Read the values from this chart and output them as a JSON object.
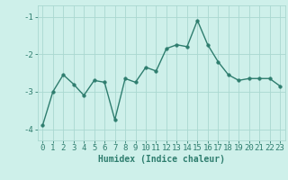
{
  "x": [
    0,
    1,
    2,
    3,
    4,
    5,
    6,
    7,
    8,
    9,
    10,
    11,
    12,
    13,
    14,
    15,
    16,
    17,
    18,
    19,
    20,
    21,
    22,
    23
  ],
  "y": [
    -3.9,
    -3.0,
    -2.55,
    -2.8,
    -3.1,
    -2.7,
    -2.75,
    -3.75,
    -2.65,
    -2.75,
    -2.35,
    -2.45,
    -1.85,
    -1.75,
    -1.8,
    -1.1,
    -1.75,
    -2.2,
    -2.55,
    -2.7,
    -2.65,
    -2.65,
    -2.65,
    -2.85
  ],
  "line_color": "#2e7d6e",
  "marker": "o",
  "markersize": 2.5,
  "linewidth": 1.0,
  "bg_color": "#cef0ea",
  "grid_color": "#aad8d0",
  "xlabel": "Humidex (Indice chaleur)",
  "xlim": [
    -0.5,
    23.5
  ],
  "ylim": [
    -4.3,
    -0.7
  ],
  "yticks": [
    -4,
    -3,
    -2,
    -1
  ],
  "ytick_labels": [
    "-4",
    "-3",
    "-2",
    "-1"
  ],
  "xtick_labels": [
    "0",
    "1",
    "2",
    "3",
    "4",
    "5",
    "6",
    "7",
    "8",
    "9",
    "10",
    "11",
    "12",
    "13",
    "14",
    "15",
    "16",
    "17",
    "18",
    "19",
    "20",
    "21",
    "22",
    "23"
  ],
  "xlabel_fontsize": 7,
  "tick_fontsize": 6.5
}
